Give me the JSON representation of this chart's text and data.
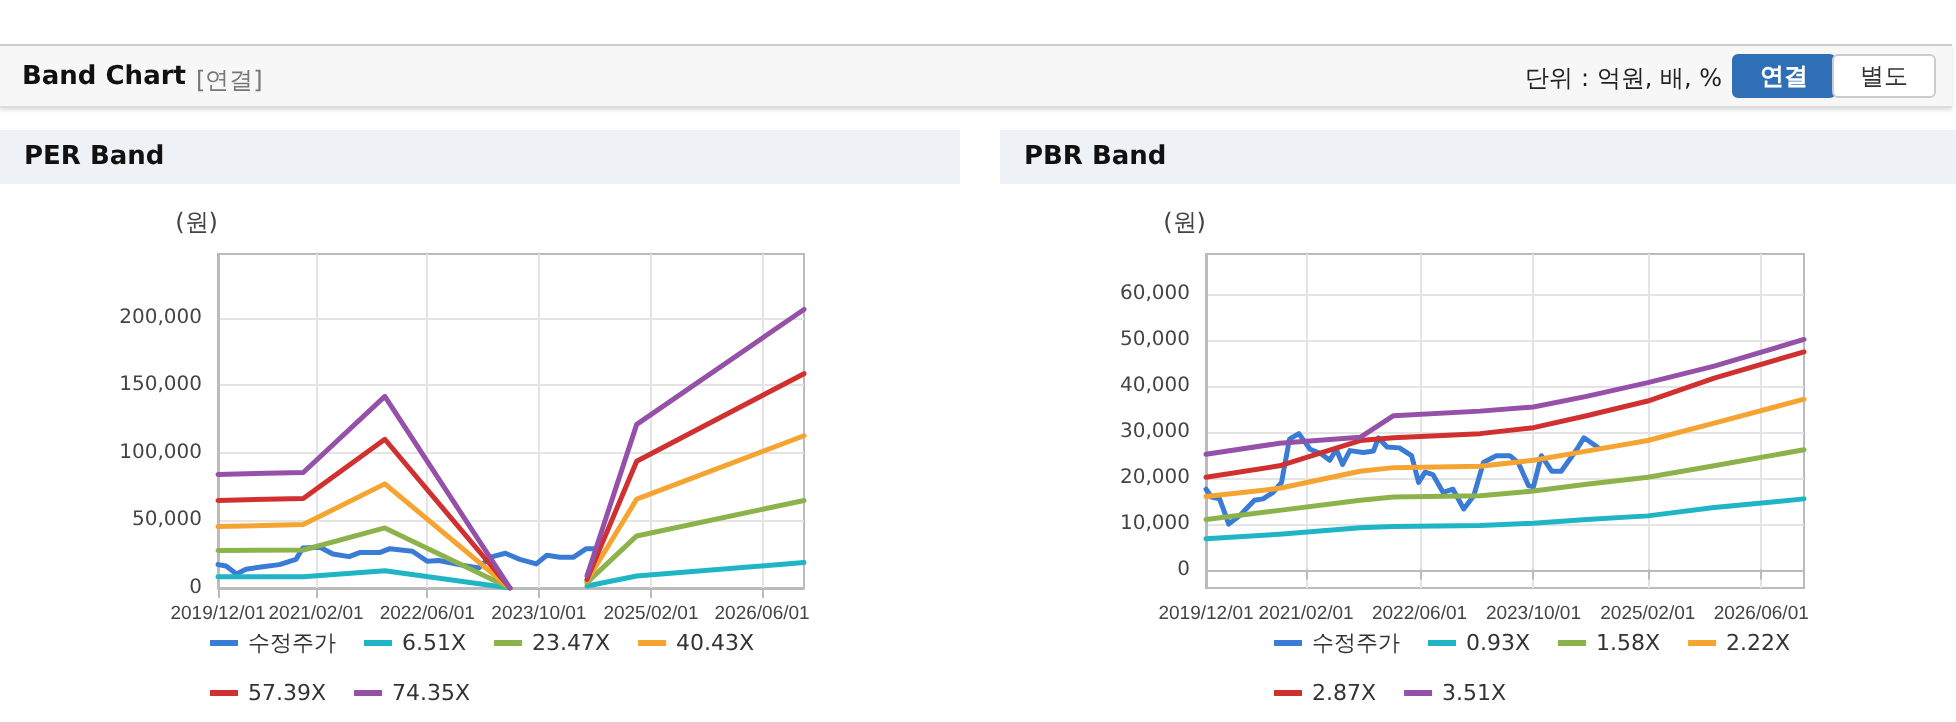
{
  "chart_data": [
    {
      "type": "line",
      "title": "PER Band",
      "ylabel": "(원)",
      "annotations": [
        "Band Chart",
        "[연결]",
        "단위 : 억원, 배, %",
        "연결",
        "별도"
      ],
      "xlim": [
        "2019-12-01",
        "2026-12-01"
      ],
      "xticks": [
        {
          "value": "2019-12-01",
          "label": "2019/12/01"
        },
        {
          "value": "2021-02-01",
          "label": "2021/02/01"
        },
        {
          "value": "2022-06-01",
          "label": "2022/06/01"
        },
        {
          "value": "2023-10-01",
          "label": "2023/10/01"
        },
        {
          "value": "2025-02-01",
          "label": "2025/02/01"
        },
        {
          "value": "2026-06-01",
          "label": "2026/06/01"
        }
      ],
      "ylim": [
        0,
        247000
      ],
      "yticks": [
        {
          "value": 0,
          "label": "0"
        },
        {
          "value": 50000,
          "label": "50,000"
        },
        {
          "value": 100000,
          "label": "100,000"
        },
        {
          "value": 150000,
          "label": "150,000"
        },
        {
          "value": 200000,
          "label": "200,000"
        }
      ],
      "grid": true,
      "legend": "bottom",
      "marker": "none",
      "line_style": "solid",
      "series": [
        {
          "name": "수정주가",
          "color": "#3a7bd5",
          "x": [
            "2019-12-01",
            "2020-01-05",
            "2020-02-20",
            "2020-04-01",
            "2020-05-28",
            "2020-08-25",
            "2020-11-05",
            "2020-12-05",
            "2021-02-18",
            "2021-04-15",
            "2021-06-25",
            "2021-08-10",
            "2021-11-05",
            "2021-12-20",
            "2022-03-28",
            "2022-06-01",
            "2022-07-22",
            "2022-10-18",
            "2023-01-12",
            "2023-02-28",
            "2023-05-08",
            "2023-07-10",
            "2023-09-20",
            "2023-11-05",
            "2024-01-01",
            "2024-02-28",
            "2024-04-25",
            "2024-06-10"
          ],
          "values": [
            17300,
            16300,
            10400,
            13800,
            15300,
            17300,
            21200,
            29600,
            30100,
            25200,
            23200,
            26200,
            26200,
            29100,
            27200,
            19800,
            20300,
            17300,
            14800,
            22700,
            25700,
            21200,
            17800,
            24200,
            22700,
            22700,
            29100,
            29100
          ]
        },
        {
          "name": "6.51X",
          "color": "#1fb5c4",
          "x": [
            "2019-12-01",
            "2020-12-07",
            "2021-11-28",
            "2023-05-28",
            "2023-11-01",
            "2024-04-28",
            "2024-12-01",
            "2026-12-01"
          ],
          "values": [
            8400,
            8400,
            12800,
            0,
            null,
            1500,
            8900,
            18800
          ]
        },
        {
          "name": "23.47X",
          "color": "#8cb34b",
          "x": [
            "2019-12-01",
            "2020-12-07",
            "2021-11-28",
            "2023-05-28",
            "2023-11-01",
            "2024-04-28",
            "2024-12-01",
            "2026-12-01"
          ],
          "values": [
            27700,
            28100,
            44400,
            0,
            null,
            4000,
            38500,
            64700
          ]
        },
        {
          "name": "40.43X",
          "color": "#f5a431",
          "x": [
            "2019-12-01",
            "2020-12-07",
            "2021-11-28",
            "2023-05-28",
            "2023-11-01",
            "2024-04-28",
            "2024-12-01",
            "2026-12-01"
          ],
          "values": [
            45400,
            46900,
            77000,
            0,
            null,
            5400,
            65700,
            112600
          ]
        },
        {
          "name": "57.39X",
          "color": "#d03030",
          "x": [
            "2019-12-01",
            "2020-12-07",
            "2021-11-28",
            "2023-05-28",
            "2023-11-01",
            "2024-04-28",
            "2024-12-01",
            "2026-12-01"
          ],
          "values": [
            64800,
            66200,
            110000,
            0,
            null,
            6400,
            93800,
            158500
          ]
        },
        {
          "name": "74.35X",
          "color": "#9550a8",
          "x": [
            "2019-12-01",
            "2020-12-07",
            "2021-11-28",
            "2023-05-28",
            "2023-11-01",
            "2024-04-28",
            "2024-12-01",
            "2026-12-01"
          ],
          "values": [
            84000,
            85400,
            141700,
            0,
            null,
            8900,
            121000,
            206000
          ]
        }
      ]
    },
    {
      "type": "line",
      "title": "PBR Band",
      "ylabel": "(원)",
      "xlim": [
        "2019-12-01",
        "2026-12-01"
      ],
      "xticks": [
        {
          "value": "2019-12-01",
          "label": "2019/12/01"
        },
        {
          "value": "2021-02-01",
          "label": "2021/02/01"
        },
        {
          "value": "2022-06-01",
          "label": "2022/06/01"
        },
        {
          "value": "2023-10-01",
          "label": "2023/10/01"
        },
        {
          "value": "2025-02-01",
          "label": "2025/02/01"
        },
        {
          "value": "2026-06-01",
          "label": "2026/06/01"
        }
      ],
      "ylim": [
        -4000,
        68700
      ],
      "yticks": [
        {
          "value": 0,
          "label": "0"
        },
        {
          "value": 10000,
          "label": "10,000"
        },
        {
          "value": 20000,
          "label": "20,000"
        },
        {
          "value": 30000,
          "label": "30,000"
        },
        {
          "value": 40000,
          "label": "40,000"
        },
        {
          "value": 50000,
          "label": "50,000"
        },
        {
          "value": 60000,
          "label": "60,000"
        }
      ],
      "grid": true,
      "legend": "bottom",
      "marker": "none",
      "line_style": "solid",
      "series": [
        {
          "name": "수정주가",
          "color": "#3a7bd5",
          "x": [
            "2019-12-01",
            "2019-12-24",
            "2020-01-28",
            "2020-02-18",
            "2020-03-07",
            "2020-04-22",
            "2020-06-25",
            "2020-08-01",
            "2020-09-13",
            "2020-10-19",
            "2020-11-22",
            "2021-01-01",
            "2021-02-18",
            "2021-04-06",
            "2021-05-13",
            "2021-06-10",
            "2021-07-07",
            "2021-08-07",
            "2021-10-04",
            "2021-11-16",
            "2021-12-07",
            "2022-01-13",
            "2022-03-07",
            "2022-04-28",
            "2022-05-28",
            "2022-06-25",
            "2022-07-28",
            "2022-09-10",
            "2022-10-22",
            "2022-12-07",
            "2023-01-19",
            "2023-03-01",
            "2023-04-25",
            "2023-06-22",
            "2023-07-28",
            "2023-09-10",
            "2023-10-01",
            "2023-11-04",
            "2023-12-19",
            "2024-01-28",
            "2024-04-04",
            "2024-05-04",
            "2024-07-01"
          ],
          "values": [
            17500,
            15800,
            15400,
            12500,
            9900,
            11700,
            15100,
            15400,
            16800,
            19000,
            28400,
            29600,
            26200,
            25200,
            23800,
            26200,
            22900,
            25900,
            25500,
            25800,
            28700,
            26700,
            26500,
            24800,
            19000,
            21200,
            20700,
            16800,
            17500,
            13200,
            16100,
            23300,
            24800,
            24800,
            23300,
            18300,
            18000,
            24800,
            21400,
            21400,
            26200,
            28700,
            26700
          ]
        },
        {
          "name": "0.93X",
          "color": "#1fb5c4",
          "x": [
            "2019-12-01",
            "2020-10-10",
            "2021-09-20",
            "2022-02-10",
            "2023-02-15",
            "2023-10-01",
            "2024-05-15",
            "2025-02-01",
            "2025-11-12",
            "2026-12-01"
          ],
          "values": [
            6700,
            7700,
            9100,
            9400,
            9600,
            10100,
            10900,
            11700,
            13500,
            15400
          ]
        },
        {
          "name": "1.58X",
          "color": "#8cb34b",
          "x": [
            "2019-12-01",
            "2020-10-10",
            "2021-09-20",
            "2022-02-10",
            "2023-02-15",
            "2023-10-01",
            "2024-05-15",
            "2025-02-01",
            "2025-11-12",
            "2026-12-01"
          ],
          "values": [
            10900,
            12900,
            15100,
            15800,
            16100,
            17100,
            18600,
            20100,
            22600,
            26100
          ]
        },
        {
          "name": "2.22X",
          "color": "#f5a431",
          "x": [
            "2019-12-01",
            "2020-10-10",
            "2021-09-20",
            "2022-02-10",
            "2023-02-15",
            "2023-10-01",
            "2024-05-15",
            "2025-02-01",
            "2025-11-12",
            "2026-12-01"
          ],
          "values": [
            15900,
            17700,
            21400,
            22200,
            22500,
            23800,
            25800,
            28100,
            31900,
            37100
          ]
        },
        {
          "name": "2.87X",
          "color": "#d03030",
          "x": [
            "2019-12-01",
            "2020-10-10",
            "2021-09-20",
            "2022-02-10",
            "2023-02-15",
            "2023-10-01",
            "2024-05-15",
            "2025-02-01",
            "2025-11-12",
            "2026-12-01"
          ],
          "values": [
            20100,
            22600,
            28100,
            28700,
            29600,
            30900,
            33500,
            36700,
            41700,
            47400
          ]
        },
        {
          "name": "3.51X",
          "color": "#9550a8",
          "x": [
            "2019-12-01",
            "2020-10-10",
            "2021-09-20",
            "2022-02-10",
            "2023-02-15",
            "2023-10-01",
            "2024-05-15",
            "2025-02-01",
            "2025-11-12",
            "2026-12-01"
          ],
          "values": [
            25100,
            27500,
            28800,
            33500,
            34500,
            35400,
            37700,
            40700,
            44300,
            50100
          ]
        }
      ]
    }
  ]
}
